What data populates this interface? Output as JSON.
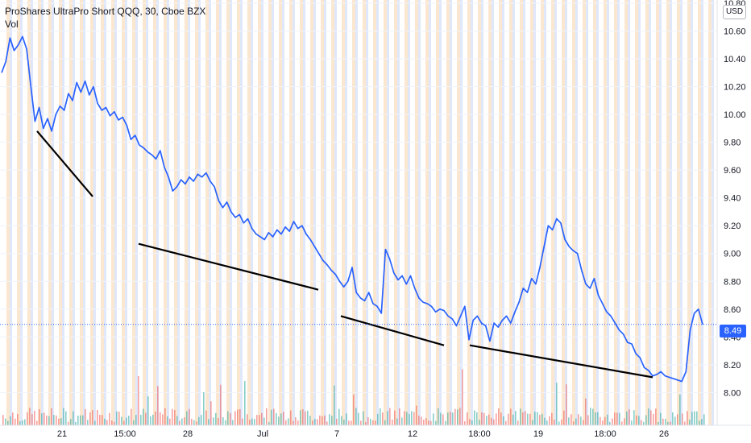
{
  "header": {
    "title": "ProShares UltraPro Short QQQ, 30, Cboe BZX",
    "volume_label": "Vol",
    "currency": "USD"
  },
  "price_tag": {
    "value": "8.49",
    "color": "#2962ff"
  },
  "colors": {
    "line": "#2962ff",
    "trendline": "#000000",
    "vol_up": "#26a69a",
    "vol_down": "#ef5350",
    "session_pre": "#fbe7cf",
    "session_post": "#dfe7fb"
  },
  "chart_data": {
    "type": "line",
    "ylim": [
      7.84,
      10.8
    ],
    "y_ticks": [
      "10.80",
      "10.60",
      "10.40",
      "10.20",
      "10.00",
      "9.80",
      "9.60",
      "9.40",
      "9.20",
      "9.00",
      "8.80",
      "8.60",
      "8.40",
      "8.20",
      "8.00"
    ],
    "x_ticks": [
      "21",
      "15:00",
      "28",
      "Jul",
      "7",
      "12",
      "18:00",
      "19",
      "18:00",
      "26"
    ],
    "last_price": 8.49,
    "series": [
      {
        "values": [
          10.3,
          10.38,
          10.55,
          10.46,
          10.5,
          10.56,
          10.47,
          10.2,
          9.95,
          10.05,
          9.9,
          9.97,
          9.88,
          10.0,
          10.06,
          10.03,
          10.15,
          10.1,
          10.23,
          10.16,
          10.24,
          10.14,
          10.2,
          10.08,
          10.03,
          10.05,
          9.99,
          10.02,
          9.96,
          9.98,
          9.92,
          9.82,
          9.85,
          9.78,
          9.76,
          9.73,
          9.71,
          9.68,
          9.74,
          9.62,
          9.55,
          9.45,
          9.48,
          9.53,
          9.5,
          9.55,
          9.52,
          9.57,
          9.55,
          9.58,
          9.52,
          9.48,
          9.38,
          9.33,
          9.37,
          9.3,
          9.26,
          9.28,
          9.22,
          9.25,
          9.18,
          9.14,
          9.12,
          9.1,
          9.15,
          9.12,
          9.17,
          9.14,
          9.19,
          9.16,
          9.23,
          9.18,
          9.2,
          9.14,
          9.1,
          9.05,
          9.0,
          8.95,
          8.92,
          8.88,
          8.85,
          8.8,
          8.76,
          8.8,
          8.9,
          8.72,
          8.68,
          8.66,
          8.72,
          8.64,
          8.62,
          8.57,
          9.03,
          8.96,
          8.86,
          8.81,
          8.84,
          8.78,
          8.84,
          8.75,
          8.68,
          8.65,
          8.64,
          8.62,
          8.58,
          8.6,
          8.59,
          8.55,
          8.53,
          8.48,
          8.55,
          8.62,
          8.38,
          8.52,
          8.55,
          8.5,
          8.48,
          8.37,
          8.5,
          8.47,
          8.52,
          8.55,
          8.5,
          8.58,
          8.65,
          8.75,
          8.72,
          8.82,
          8.78,
          8.9,
          9.05,
          9.2,
          9.17,
          9.25,
          9.22,
          9.1,
          9.05,
          9.02,
          9.0,
          8.88,
          8.78,
          8.75,
          8.82,
          8.7,
          8.64,
          8.58,
          8.55,
          8.5,
          8.45,
          8.42,
          8.36,
          8.35,
          8.28,
          8.25,
          8.18,
          8.16,
          8.12,
          8.13,
          8.15,
          8.12,
          8.11,
          8.1,
          8.09,
          8.08,
          8.15,
          8.45,
          8.57,
          8.6,
          8.49
        ]
      }
    ],
    "trendlines": [
      {
        "from": [
          "21",
          9.88
        ],
        "to": [
          "15:00",
          9.41
        ]
      },
      {
        "from": [
          "28",
          9.07
        ],
        "to": [
          "Jul",
          8.74
        ]
      },
      {
        "from": [
          "7",
          8.55
        ],
        "to": [
          "12",
          8.34
        ]
      },
      {
        "from": [
          "18:00",
          8.34
        ],
        "to": [
          "18:00",
          8.11
        ]
      }
    ]
  }
}
